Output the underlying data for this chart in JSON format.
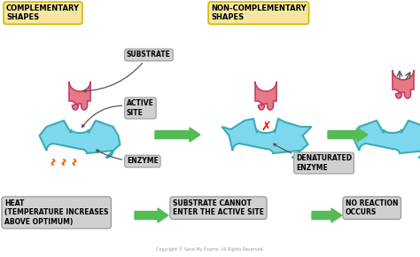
{
  "bg_color": "#ffffff",
  "title_box1_text": "COMPLEMENTARY\nSHAPES",
  "title_box2_text": "NON-COMPLEMENTARY\nSHAPES",
  "title_box1_color": "#f5e6a0",
  "title_box2_color": "#f5e6a0",
  "title_box1_edge": "#d4b800",
  "title_box2_edge": "#d4b800",
  "label_substrate": "SUBSTRATE",
  "label_active_site": "ACTIVE\nSITE",
  "label_enzyme": "ENZYME",
  "label_denaturated": "DENATURATED\nENZYME",
  "bottom_box1": "HEAT\n(TEMPERATURE INCREASES\nABOVE OPTIMUM)",
  "bottom_box2": "SUBSTRATE CANNOT\nENTER THE ACTIVE SITE",
  "bottom_box3": "NO REACTION\nOCCURS",
  "enzyme_color": "#7dd8ee",
  "enzyme_edge": "#3aabb5",
  "substrate_color": "#e87888",
  "substrate_edge": "#c04060",
  "arrow_color": "#55bb55",
  "label_box_color": "#d0d0d0",
  "label_box_edge": "#999999",
  "bottom_box_color": "#d0d0d0",
  "bottom_box_edge": "#999999",
  "heat_color": "#e87020",
  "copyright": "Copyright © Save My Exams. All Rights Reserved."
}
